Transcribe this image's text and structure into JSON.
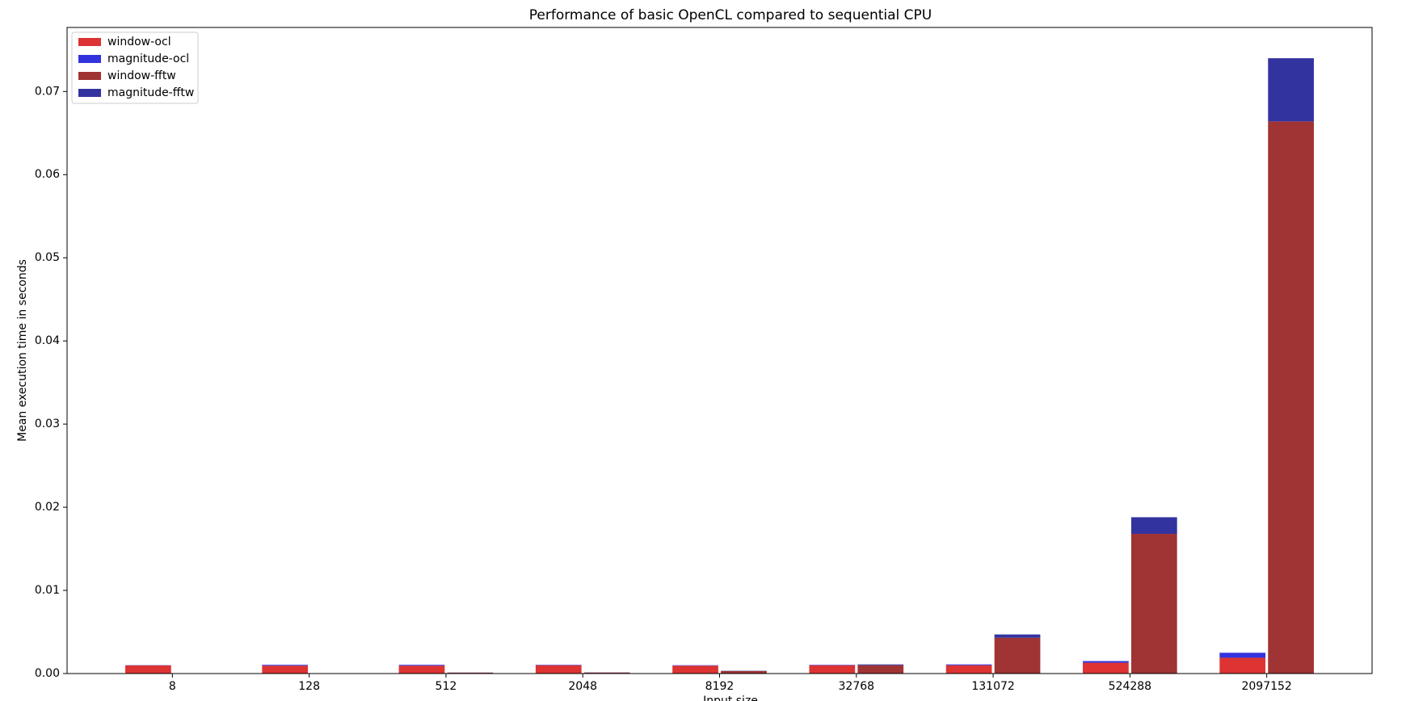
{
  "chart_data": {
    "type": "bar",
    "stacked": true,
    "title": "Performance of basic OpenCL compared to sequential CPU",
    "x_label": "Input size",
    "y_label": "Mean execution time in seconds",
    "categories": [
      "8",
      "128",
      "512",
      "2048",
      "8192",
      "32768",
      "131072",
      "524288",
      "2097152"
    ],
    "series": [
      {
        "name": "window-ocl",
        "color": "#dd3333",
        "group": 0,
        "values": [
          0.00097,
          0.00095,
          0.00095,
          0.001,
          0.00095,
          0.001,
          0.001,
          0.0013,
          0.0019
        ]
      },
      {
        "name": "magnitude-ocl",
        "color": "#3333dd",
        "group": 0,
        "values": [
          3e-05,
          0.0001,
          0.0001,
          5e-05,
          5e-05,
          5e-05,
          0.0001,
          0.0002,
          0.0006
        ]
      },
      {
        "name": "window-fftw",
        "color": "#a03333",
        "group": 1,
        "values": [
          1e-05,
          2e-05,
          0.0001,
          0.00012,
          0.0003,
          0.001,
          0.0043,
          0.0168,
          0.0664
        ]
      },
      {
        "name": "magnitude-fftw",
        "color": "#3333a0",
        "group": 1,
        "values": [
          2e-06,
          5e-06,
          2e-05,
          2e-05,
          3e-05,
          0.0001,
          0.0004,
          0.002,
          0.0076
        ]
      }
    ],
    "ylim": [
      0,
      0.0777
    ],
    "yticks": [
      {
        "value": 0,
        "label": "0.00"
      },
      0.01,
      0.02,
      0.03,
      0.04,
      0.05,
      0.06,
      0.07
    ],
    "legend": "upper left"
  }
}
